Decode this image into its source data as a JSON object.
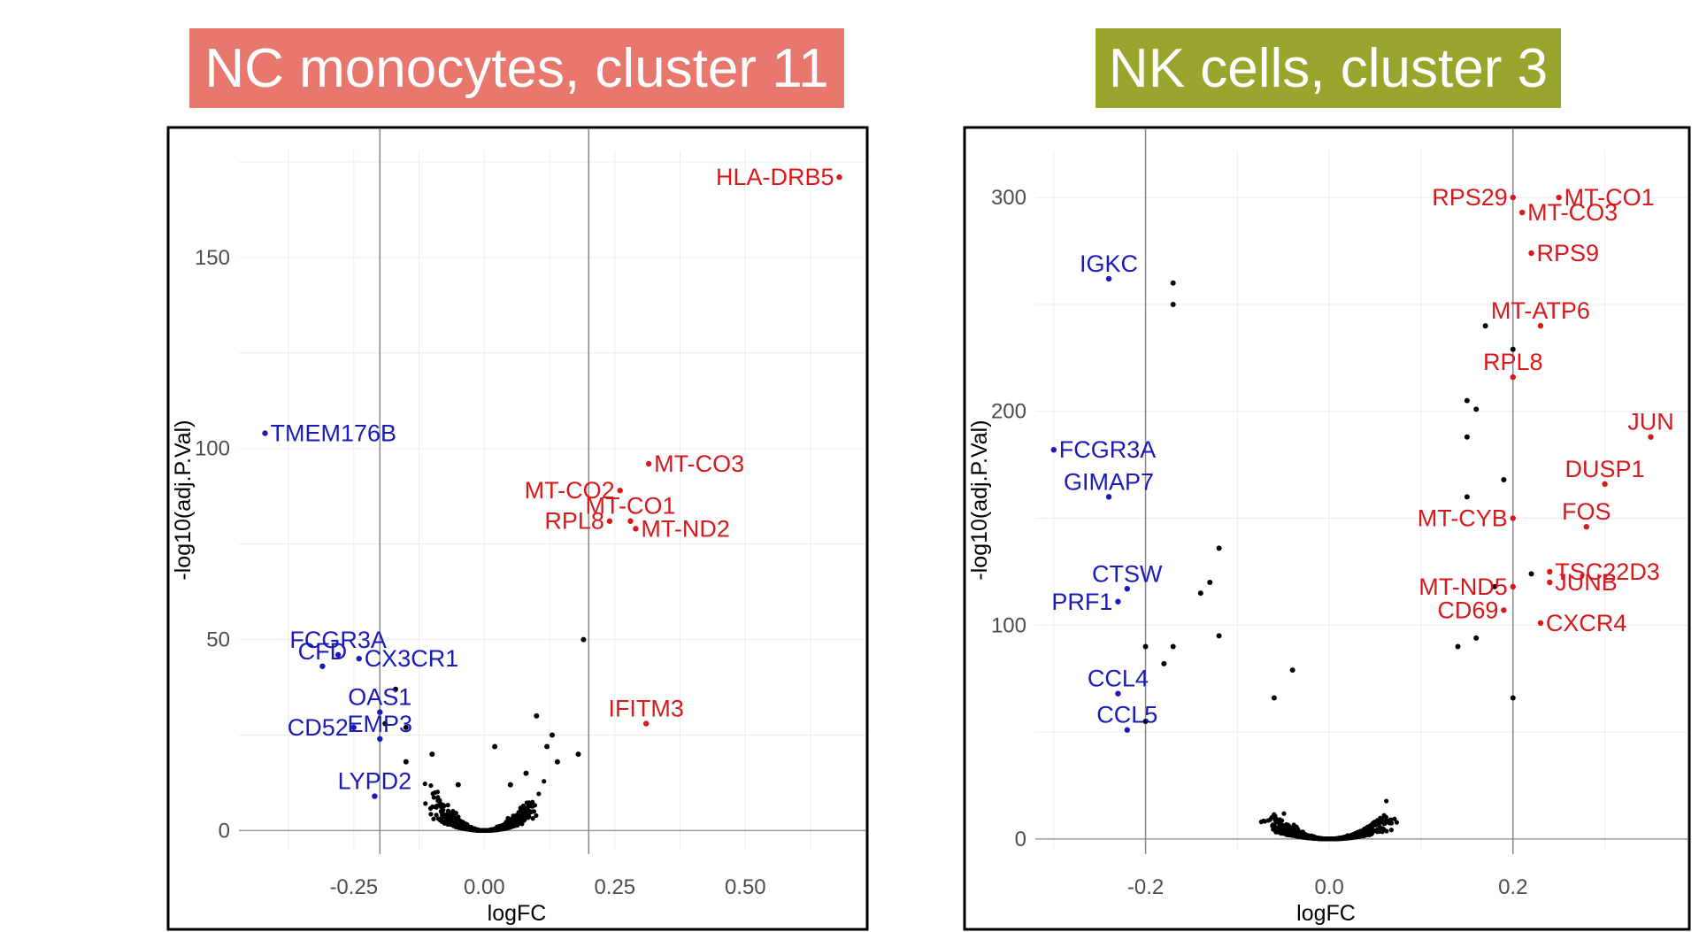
{
  "colors": {
    "up": "#d7191c",
    "down": "#1a1ab8",
    "neutral": "#000000",
    "title_left_bg": "#e8786e",
    "title_right_bg": "#9aa52e"
  },
  "chart_data": [
    {
      "type": "scatter",
      "subtype": "volcano",
      "title": "NC monocytes, cluster 11",
      "xlabel": "logFC",
      "ylabel": "-log10(adj.P.Val)",
      "xlim": [
        -0.47,
        0.73
      ],
      "ylim": [
        -5,
        178
      ],
      "xticks": [
        -0.25,
        0.0,
        0.25,
        0.5
      ],
      "xtick_labels": [
        "-0.25",
        "0.00",
        "0.25",
        "0.50"
      ],
      "yticks": [
        0,
        50,
        100,
        150
      ],
      "ytick_labels": [
        "0",
        "50",
        "100",
        "150"
      ],
      "vlines": [
        -0.2,
        0.2
      ],
      "labeled_genes": [
        {
          "gene": "HLA-DRB5",
          "x": 0.68,
          "y": 171,
          "dir": "up",
          "anchor": "end"
        },
        {
          "gene": "MT-CO3",
          "x": 0.315,
          "y": 96,
          "dir": "up",
          "anchor": "start"
        },
        {
          "gene": "MT-CO2",
          "x": 0.26,
          "y": 89,
          "dir": "up",
          "anchor": "end"
        },
        {
          "gene": "MT-CO1",
          "x": 0.28,
          "y": 81,
          "dir": "up",
          "anchor": "middle"
        },
        {
          "gene": "RPL8",
          "x": 0.24,
          "y": 81,
          "dir": "up",
          "anchor": "end"
        },
        {
          "gene": "MT-ND2",
          "x": 0.29,
          "y": 79,
          "dir": "up",
          "anchor": "start"
        },
        {
          "gene": "IFITM3",
          "x": 0.31,
          "y": 28,
          "dir": "up",
          "anchor": "middle"
        },
        {
          "gene": "TMEM176B",
          "x": -0.42,
          "y": 104,
          "dir": "down",
          "anchor": "start"
        },
        {
          "gene": "FCGR3A",
          "x": -0.28,
          "y": 46,
          "dir": "down",
          "anchor": "middle"
        },
        {
          "gene": "CFD",
          "x": -0.31,
          "y": 43,
          "dir": "down",
          "anchor": "middle"
        },
        {
          "gene": "CX3CR1",
          "x": -0.24,
          "y": 45,
          "dir": "down",
          "anchor": "start"
        },
        {
          "gene": "OAS1",
          "x": -0.2,
          "y": 31,
          "dir": "down",
          "anchor": "middle"
        },
        {
          "gene": "CD52",
          "x": -0.25,
          "y": 27,
          "dir": "down",
          "anchor": "end"
        },
        {
          "gene": "EMP3",
          "x": -0.2,
          "y": 24,
          "dir": "down",
          "anchor": "middle"
        },
        {
          "gene": "LYPD2",
          "x": -0.21,
          "y": 9,
          "dir": "down",
          "anchor": "middle"
        }
      ],
      "other_points": [
        [
          0.19,
          50
        ],
        [
          0.1,
          30
        ],
        [
          0.12,
          22
        ],
        [
          -0.1,
          20
        ],
        [
          -0.15,
          18
        ],
        [
          0.14,
          18
        ],
        [
          0.02,
          22
        ],
        [
          -0.17,
          37
        ],
        [
          -0.15,
          27
        ],
        [
          -0.19,
          28
        ],
        [
          0.08,
          15
        ],
        [
          0.05,
          12
        ],
        [
          -0.05,
          12
        ],
        [
          0.13,
          25
        ],
        [
          0.18,
          20
        ]
      ]
    },
    {
      "type": "scatter",
      "subtype": "volcano",
      "title": "NK cells, cluster 3",
      "xlabel": "logFC",
      "ylabel": "-log10(adj.P.Val)",
      "xlim": [
        -0.32,
        0.39
      ],
      "ylim": [
        -5,
        322
      ],
      "xticks": [
        -0.2,
        0.0,
        0.2
      ],
      "xtick_labels": [
        "-0.2",
        "0.0",
        "0.2"
      ],
      "yticks": [
        0,
        100,
        200,
        300
      ],
      "ytick_labels": [
        "0",
        "100",
        "200",
        "300"
      ],
      "vlines": [
        -0.2,
        0.2
      ],
      "labeled_genes": [
        {
          "gene": "RPS29",
          "x": 0.2,
          "y": 300,
          "dir": "up",
          "anchor": "end"
        },
        {
          "gene": "MT-CO1",
          "x": 0.25,
          "y": 300,
          "dir": "up",
          "anchor": "start"
        },
        {
          "gene": "MT-CO3",
          "x": 0.21,
          "y": 293,
          "dir": "up",
          "anchor": "start"
        },
        {
          "gene": "RPS9",
          "x": 0.22,
          "y": 274,
          "dir": "up",
          "anchor": "start"
        },
        {
          "gene": "MT-ATP6",
          "x": 0.23,
          "y": 240,
          "dir": "up",
          "anchor": "middle"
        },
        {
          "gene": "RPL8",
          "x": 0.2,
          "y": 216,
          "dir": "up",
          "anchor": "middle"
        },
        {
          "gene": "JUN",
          "x": 0.35,
          "y": 188,
          "dir": "up",
          "anchor": "middle"
        },
        {
          "gene": "DUSP1",
          "x": 0.3,
          "y": 166,
          "dir": "up",
          "anchor": "middle"
        },
        {
          "gene": "MT-CYB",
          "x": 0.2,
          "y": 150,
          "dir": "up",
          "anchor": "end"
        },
        {
          "gene": "FOS",
          "x": 0.28,
          "y": 146,
          "dir": "up",
          "anchor": "middle"
        },
        {
          "gene": "TSC22D3",
          "x": 0.24,
          "y": 125,
          "dir": "up",
          "anchor": "start"
        },
        {
          "gene": "MT-ND5",
          "x": 0.2,
          "y": 118,
          "dir": "up",
          "anchor": "end"
        },
        {
          "gene": "JUNB",
          "x": 0.24,
          "y": 120,
          "dir": "up",
          "anchor": "start"
        },
        {
          "gene": "CD69",
          "x": 0.19,
          "y": 107,
          "dir": "up",
          "anchor": "end"
        },
        {
          "gene": "CXCR4",
          "x": 0.23,
          "y": 101,
          "dir": "up",
          "anchor": "start"
        },
        {
          "gene": "IGKC",
          "x": -0.24,
          "y": 262,
          "dir": "down",
          "anchor": "middle"
        },
        {
          "gene": "FCGR3A",
          "x": -0.3,
          "y": 182,
          "dir": "down",
          "anchor": "start"
        },
        {
          "gene": "GIMAP7",
          "x": -0.24,
          "y": 160,
          "dir": "down",
          "anchor": "middle"
        },
        {
          "gene": "CTSW",
          "x": -0.22,
          "y": 117,
          "dir": "down",
          "anchor": "middle"
        },
        {
          "gene": "PRF1",
          "x": -0.23,
          "y": 111,
          "dir": "down",
          "anchor": "end"
        },
        {
          "gene": "CCL4",
          "x": -0.23,
          "y": 68,
          "dir": "down",
          "anchor": "middle"
        },
        {
          "gene": "CCL5",
          "x": -0.22,
          "y": 51,
          "dir": "down",
          "anchor": "middle"
        }
      ],
      "other_points": [
        [
          -0.17,
          260
        ],
        [
          -0.17,
          250
        ],
        [
          -0.12,
          136
        ],
        [
          -0.13,
          120
        ],
        [
          -0.14,
          115
        ],
        [
          -0.12,
          95
        ],
        [
          -0.2,
          90
        ],
        [
          -0.17,
          90
        ],
        [
          -0.18,
          82
        ],
        [
          -0.2,
          55
        ],
        [
          -0.04,
          79
        ],
        [
          -0.06,
          66
        ],
        [
          0.17,
          240
        ],
        [
          0.2,
          229
        ],
        [
          0.15,
          205
        ],
        [
          0.16,
          201
        ],
        [
          0.15,
          188
        ],
        [
          0.15,
          160
        ],
        [
          0.19,
          168
        ],
        [
          0.22,
          124
        ],
        [
          0.18,
          118
        ],
        [
          0.2,
          66
        ],
        [
          0.16,
          94
        ],
        [
          0.14,
          90
        ]
      ]
    }
  ]
}
